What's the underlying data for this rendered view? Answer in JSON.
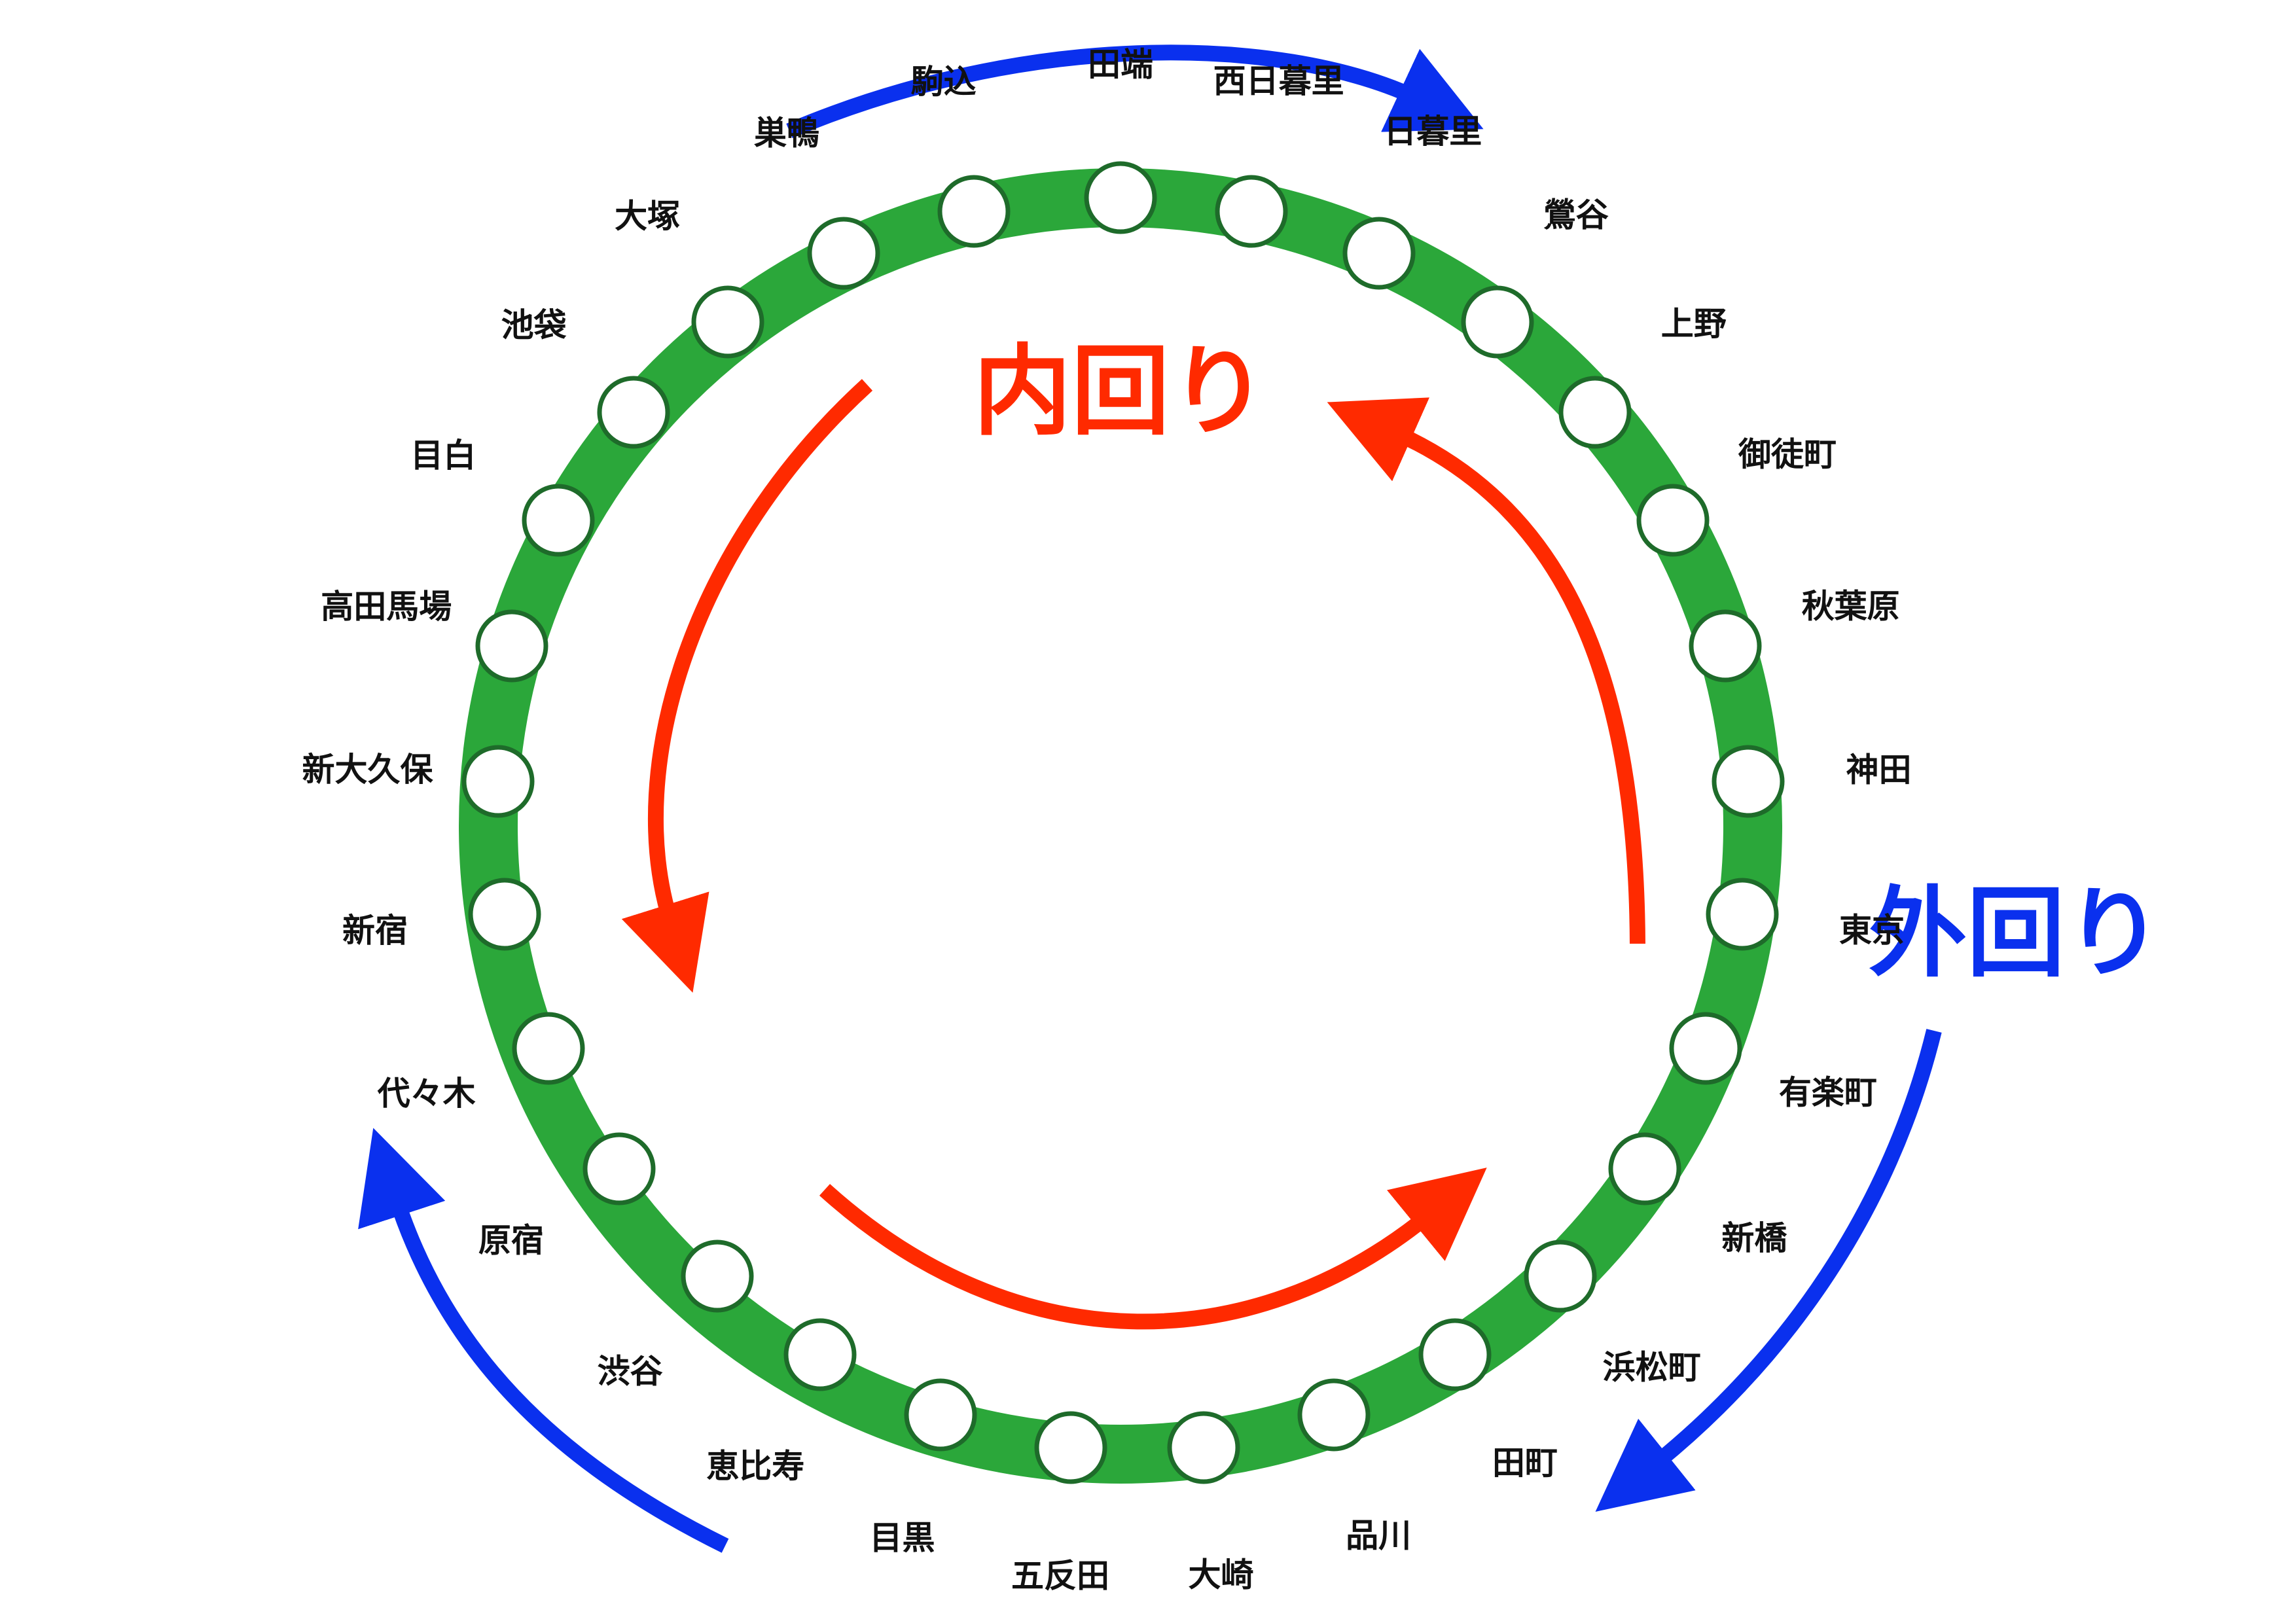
{
  "colors": {
    "line": "#2ba73a",
    "station_stroke": "#1e6b2a",
    "inner": "#ff2a00",
    "outer": "#0a30ee",
    "label": "#111111"
  },
  "directions": {
    "inner": "内回り",
    "outer": "外回り"
  },
  "stations": [
    {
      "name": "田端",
      "icon": "station-circle-icon"
    },
    {
      "name": "西日暮里",
      "icon": "station-circle-icon"
    },
    {
      "name": "日暮里",
      "icon": "station-circle-icon"
    },
    {
      "name": "鶯谷",
      "icon": "station-circle-icon"
    },
    {
      "name": "上野",
      "icon": "station-circle-icon"
    },
    {
      "name": "御徒町",
      "icon": "station-circle-icon"
    },
    {
      "name": "秋葉原",
      "icon": "station-circle-icon"
    },
    {
      "name": "神田",
      "icon": "station-circle-icon"
    },
    {
      "name": "東京",
      "icon": "station-circle-icon"
    },
    {
      "name": "有楽町",
      "icon": "station-circle-icon"
    },
    {
      "name": "新橋",
      "icon": "station-circle-icon"
    },
    {
      "name": "浜松町",
      "icon": "station-circle-icon"
    },
    {
      "name": "田町",
      "icon": "station-circle-icon"
    },
    {
      "name": "品川",
      "icon": "station-circle-icon"
    },
    {
      "name": "大崎",
      "icon": "station-circle-icon"
    },
    {
      "name": "五反田",
      "icon": "station-circle-icon"
    },
    {
      "name": "目黒",
      "icon": "station-circle-icon"
    },
    {
      "name": "恵比寿",
      "icon": "station-circle-icon"
    },
    {
      "name": "渋谷",
      "icon": "station-circle-icon"
    },
    {
      "name": "原宿",
      "icon": "station-circle-icon"
    },
    {
      "name": "代々木",
      "icon": "station-circle-icon"
    },
    {
      "name": "新宿",
      "icon": "station-circle-icon"
    },
    {
      "name": "新大久保",
      "icon": "station-circle-icon"
    },
    {
      "name": "高田馬場",
      "icon": "station-circle-icon"
    },
    {
      "name": "目白",
      "icon": "station-circle-icon"
    },
    {
      "name": "池袋",
      "icon": "station-circle-icon"
    },
    {
      "name": "大塚",
      "icon": "station-circle-icon"
    },
    {
      "name": "巣鴨",
      "icon": "station-circle-icon"
    },
    {
      "name": "駒込",
      "icon": "station-circle-icon"
    }
  ],
  "arrows": [
    {
      "icon": "clockwise-arrow-icon",
      "direction": "outer"
    },
    {
      "icon": "counterclockwise-arrow-icon",
      "direction": "inner"
    }
  ]
}
